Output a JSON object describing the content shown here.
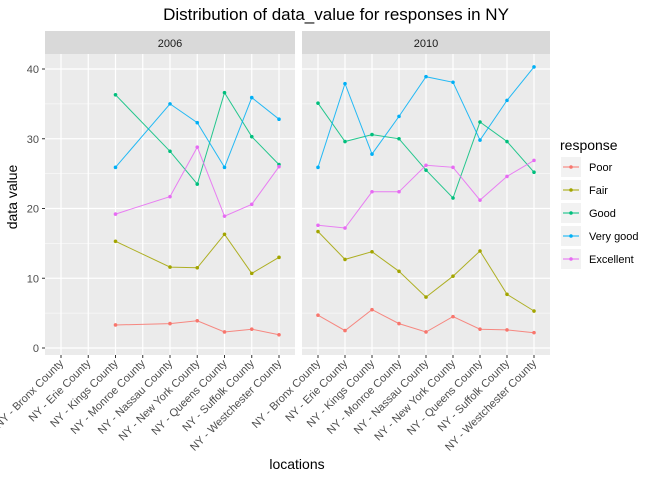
{
  "chart_data": {
    "type": "line",
    "title": "Distribution of data_value for responses in NY",
    "xlabel": "locations",
    "ylabel": "data value",
    "ylim": [
      0,
      45
    ],
    "yticks": [
      0,
      10,
      20,
      30,
      40
    ],
    "grid": true,
    "legend": {
      "title": "response",
      "position": "right"
    },
    "categories": [
      "NY - Bronx County",
      "NY - Erie County",
      "NY - Kings County",
      "NY - Monroe County",
      "NY - Nassau County",
      "NY - New York County",
      "NY - Queens County",
      "NY - Suffolk County",
      "NY - Westchester County"
    ],
    "series_meta": [
      {
        "name": "Poor",
        "color": "#F8766D"
      },
      {
        "name": "Fair",
        "color": "#A3A500"
      },
      {
        "name": "Good",
        "color": "#00BF7D"
      },
      {
        "name": "Very good",
        "color": "#00B0F6"
      },
      {
        "name": "Excellent",
        "color": "#E76BF3"
      }
    ],
    "panels": [
      {
        "label": "2006",
        "series": [
          {
            "name": "Poor",
            "values": [
              null,
              null,
              3.3,
              null,
              3.5,
              3.9,
              2.3,
              2.7,
              1.9
            ]
          },
          {
            "name": "Fair",
            "values": [
              null,
              null,
              15.3,
              null,
              11.6,
              11.5,
              16.3,
              10.7,
              13.0
            ]
          },
          {
            "name": "Good",
            "values": [
              null,
              null,
              36.3,
              null,
              28.2,
              23.5,
              36.6,
              30.3,
              26.3
            ]
          },
          {
            "name": "Very good",
            "values": [
              null,
              null,
              25.9,
              null,
              35.0,
              32.3,
              25.9,
              35.9,
              32.8
            ]
          },
          {
            "name": "Excellent",
            "values": [
              null,
              null,
              19.2,
              null,
              21.7,
              28.8,
              18.9,
              20.6,
              26.0
            ]
          }
        ]
      },
      {
        "label": "2010",
        "series": [
          {
            "name": "Poor",
            "values": [
              4.7,
              2.5,
              5.5,
              3.5,
              2.3,
              4.5,
              2.7,
              2.6,
              2.2
            ]
          },
          {
            "name": "Fair",
            "values": [
              16.7,
              12.7,
              13.8,
              11.0,
              7.3,
              10.3,
              13.9,
              7.7,
              5.3
            ]
          },
          {
            "name": "Good",
            "values": [
              35.1,
              29.6,
              30.6,
              30.0,
              25.5,
              21.5,
              32.4,
              29.6,
              25.2
            ]
          },
          {
            "name": "Very good",
            "values": [
              25.9,
              37.9,
              27.8,
              33.2,
              38.9,
              38.1,
              29.8,
              35.5,
              40.3
            ]
          },
          {
            "name": "Excellent",
            "values": [
              17.6,
              17.2,
              22.4,
              22.4,
              26.2,
              25.9,
              21.2,
              24.6,
              26.9
            ]
          }
        ]
      }
    ]
  }
}
